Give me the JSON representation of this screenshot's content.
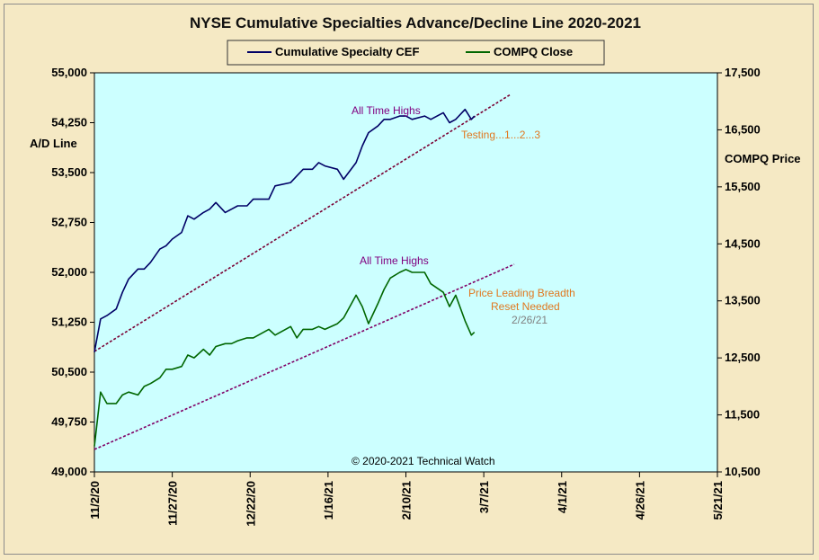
{
  "chart_data": {
    "type": "line",
    "title": "NYSE Cumulative  Specialties  Advance/Decline  Line  2020-2021",
    "ylabel": "A/D Line",
    "ylabel_right": "COMPQ Price",
    "y_ticks": [
      "55,000",
      "54,250",
      "53,500",
      "52,750",
      "52,000",
      "51,250",
      "50,500",
      "49,750",
      "49,000"
    ],
    "y_ticks_right": [
      "17,500",
      "16,500",
      "15,500",
      "14,500",
      "13,500",
      "12,500",
      "11,500",
      "10,500"
    ],
    "x_ticks": [
      "11/2/20",
      "11/27/20",
      "12/22/20",
      "1/16/21",
      "2/10/21",
      "3/7/21",
      "4/1/21",
      "4/26/21",
      "5/21/21"
    ],
    "x_range": [
      "2020-11-02",
      "2021-05-21"
    ],
    "ylim": [
      49000,
      55000
    ],
    "ylim_right": [
      10500,
      17500
    ],
    "grid": false,
    "legend_position": "top",
    "colors": {
      "cef": "#000066",
      "compq": "#006600",
      "plot_bg": "#ccffff",
      "page_bg": "#f5e9c4",
      "trendline": "#7a0033",
      "annot_purple": "#800080",
      "annot_orange": "#e07820",
      "annot_gray": "#808080"
    },
    "series": [
      {
        "name": "Cumulative Specialty CEF",
        "axis": "left",
        "x": [
          "2020-11-02",
          "2020-11-04",
          "2020-11-06",
          "2020-11-09",
          "2020-11-11",
          "2020-11-13",
          "2020-11-16",
          "2020-11-18",
          "2020-11-20",
          "2020-11-23",
          "2020-11-25",
          "2020-11-27",
          "2020-11-30",
          "2020-12-02",
          "2020-12-04",
          "2020-12-07",
          "2020-12-09",
          "2020-12-11",
          "2020-12-14",
          "2020-12-16",
          "2020-12-18",
          "2020-12-21",
          "2020-12-23",
          "2020-12-28",
          "2020-12-30",
          "2021-01-04",
          "2021-01-06",
          "2021-01-08",
          "2021-01-11",
          "2021-01-13",
          "2021-01-15",
          "2021-01-19",
          "2021-01-21",
          "2021-01-25",
          "2021-01-27",
          "2021-01-29",
          "2021-02-01",
          "2021-02-03",
          "2021-02-05",
          "2021-02-08",
          "2021-02-10",
          "2021-02-12",
          "2021-02-16",
          "2021-02-18",
          "2021-02-22",
          "2021-02-24",
          "2021-02-26",
          "2021-03-01",
          "2021-03-03",
          "2021-03-04"
        ],
        "values": [
          50800,
          51300,
          51350,
          51450,
          51700,
          51900,
          52050,
          52050,
          52150,
          52350,
          52400,
          52500,
          52600,
          52850,
          52800,
          52900,
          52950,
          53050,
          52900,
          52950,
          53000,
          53000,
          53100,
          53100,
          53300,
          53350,
          53450,
          53550,
          53550,
          53650,
          53600,
          53550,
          53400,
          53650,
          53900,
          54100,
          54200,
          54300,
          54300,
          54350,
          54350,
          54300,
          54350,
          54300,
          54400,
          54250,
          54300,
          54450,
          54300,
          54350
        ]
      },
      {
        "name": "COMPQ Close",
        "axis": "right",
        "x": [
          "2020-11-02",
          "2020-11-04",
          "2020-11-06",
          "2020-11-09",
          "2020-11-11",
          "2020-11-13",
          "2020-11-16",
          "2020-11-18",
          "2020-11-20",
          "2020-11-23",
          "2020-11-25",
          "2020-11-27",
          "2020-11-30",
          "2020-12-02",
          "2020-12-04",
          "2020-12-07",
          "2020-12-09",
          "2020-12-11",
          "2020-12-14",
          "2020-12-16",
          "2020-12-18",
          "2020-12-21",
          "2020-12-23",
          "2020-12-28",
          "2020-12-30",
          "2021-01-04",
          "2021-01-06",
          "2021-01-08",
          "2021-01-11",
          "2021-01-13",
          "2021-01-15",
          "2021-01-19",
          "2021-01-21",
          "2021-01-25",
          "2021-01-27",
          "2021-01-29",
          "2021-02-01",
          "2021-02-03",
          "2021-02-05",
          "2021-02-08",
          "2021-02-10",
          "2021-02-12",
          "2021-02-16",
          "2021-02-18",
          "2021-02-22",
          "2021-02-24",
          "2021-02-26",
          "2021-03-01",
          "2021-03-03",
          "2021-03-04"
        ],
        "values": [
          10950,
          11900,
          11700,
          11700,
          11850,
          11900,
          11850,
          12000,
          12050,
          12150,
          12300,
          12300,
          12350,
          12550,
          12500,
          12650,
          12550,
          12700,
          12750,
          12750,
          12800,
          12850,
          12850,
          13000,
          12900,
          13050,
          12850,
          13000,
          13000,
          13050,
          13000,
          13100,
          13200,
          13600,
          13400,
          13100,
          13450,
          13700,
          13900,
          14000,
          14050,
          14000,
          14000,
          13800,
          13650,
          13400,
          13600,
          13150,
          12900,
          12950
        ]
      }
    ],
    "annotations": [
      "All Time Highs",
      "Testing...1...2...3",
      "All Time Highs",
      "Price Leading Breadth",
      "Reset Needed",
      "2/26/21"
    ],
    "copyright": "© 2020-2021  Technical Watch"
  }
}
